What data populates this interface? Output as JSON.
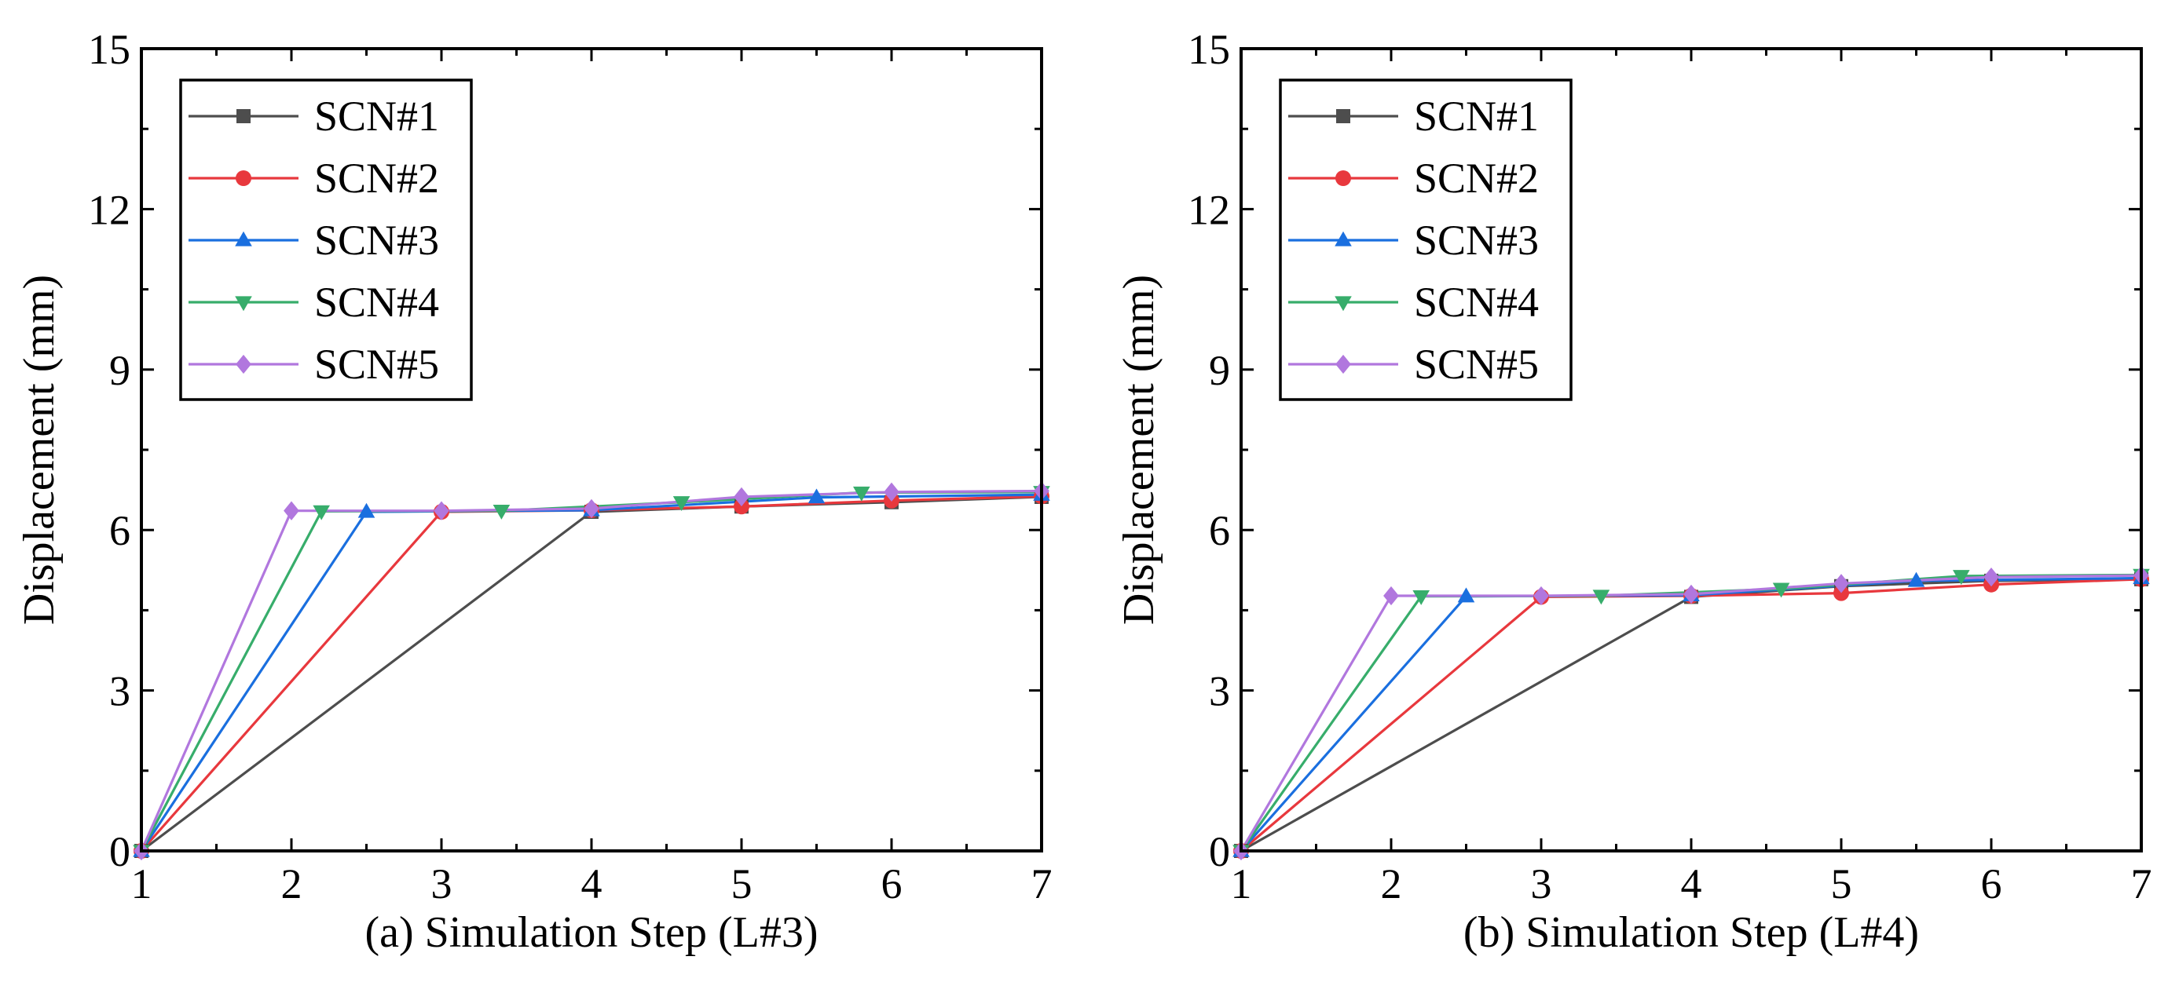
{
  "chart_data": [
    {
      "type": "line",
      "panel": "a",
      "xlabel": "(a) Simulation Step (L#3)",
      "ylabel": "Displacement (mm)",
      "xlim": [
        1,
        7
      ],
      "ylim": [
        0,
        15
      ],
      "xticks": [
        1,
        2,
        3,
        4,
        5,
        6,
        7
      ],
      "yticks": [
        0,
        3,
        6,
        9,
        12,
        15
      ],
      "grid": false,
      "legend_position": "top-left",
      "series": [
        {
          "name": "SCN#1",
          "color": "#4d4d4d",
          "marker": "square",
          "x": [
            1,
            4,
            5,
            6,
            7
          ],
          "y": [
            0,
            6.34,
            6.44,
            6.52,
            6.62
          ]
        },
        {
          "name": "SCN#2",
          "color": "#e8383d",
          "marker": "circle",
          "x": [
            1,
            3,
            4,
            5,
            6,
            7
          ],
          "y": [
            0,
            6.34,
            6.37,
            6.44,
            6.55,
            6.63
          ]
        },
        {
          "name": "SCN#3",
          "color": "#1a6fdf",
          "marker": "triangle-up",
          "x": [
            1,
            2.5,
            4,
            5.5,
            7
          ],
          "y": [
            0,
            6.34,
            6.37,
            6.61,
            6.66
          ]
        },
        {
          "name": "SCN#4",
          "color": "#37ad6b",
          "marker": "triangle-down",
          "x": [
            1,
            2.2,
            3.4,
            4.6,
            5.8,
            7
          ],
          "y": [
            0,
            6.35,
            6.36,
            6.52,
            6.7,
            6.71
          ]
        },
        {
          "name": "SCN#5",
          "color": "#b177de",
          "marker": "diamond",
          "x": [
            1,
            2,
            3,
            4,
            5,
            6,
            7
          ],
          "y": [
            0,
            6.36,
            6.36,
            6.4,
            6.62,
            6.71,
            6.73
          ]
        }
      ]
    },
    {
      "type": "line",
      "panel": "b",
      "xlabel": "(b) Simulation Step (L#4)",
      "ylabel": "Displacement (mm)",
      "xlim": [
        1,
        7
      ],
      "ylim": [
        0,
        15
      ],
      "xticks": [
        1,
        2,
        3,
        4,
        5,
        6,
        7
      ],
      "yticks": [
        0,
        3,
        6,
        9,
        12,
        15
      ],
      "grid": false,
      "legend_position": "top-left",
      "series": [
        {
          "name": "SCN#1",
          "color": "#4d4d4d",
          "marker": "square",
          "x": [
            1,
            4,
            5,
            6,
            7
          ],
          "y": [
            0,
            4.75,
            4.95,
            5.05,
            5.08
          ]
        },
        {
          "name": "SCN#2",
          "color": "#e8383d",
          "marker": "circle",
          "x": [
            1,
            3,
            4,
            5,
            6,
            7
          ],
          "y": [
            0,
            4.75,
            4.77,
            4.82,
            4.98,
            5.08
          ]
        },
        {
          "name": "SCN#3",
          "color": "#1a6fdf",
          "marker": "triangle-up",
          "x": [
            1,
            2.5,
            4,
            5.5,
            7
          ],
          "y": [
            0,
            4.76,
            4.78,
            5.05,
            5.1
          ]
        },
        {
          "name": "SCN#4",
          "color": "#37ad6b",
          "marker": "triangle-down",
          "x": [
            1,
            2.2,
            3.4,
            4.6,
            5.8,
            7
          ],
          "y": [
            0,
            4.76,
            4.77,
            4.9,
            5.14,
            5.16
          ]
        },
        {
          "name": "SCN#5",
          "color": "#b177de",
          "marker": "diamond",
          "x": [
            1,
            2,
            3,
            4,
            5,
            6,
            7
          ],
          "y": [
            0,
            4.77,
            4.77,
            4.8,
            5.0,
            5.12,
            5.15
          ]
        }
      ]
    }
  ]
}
